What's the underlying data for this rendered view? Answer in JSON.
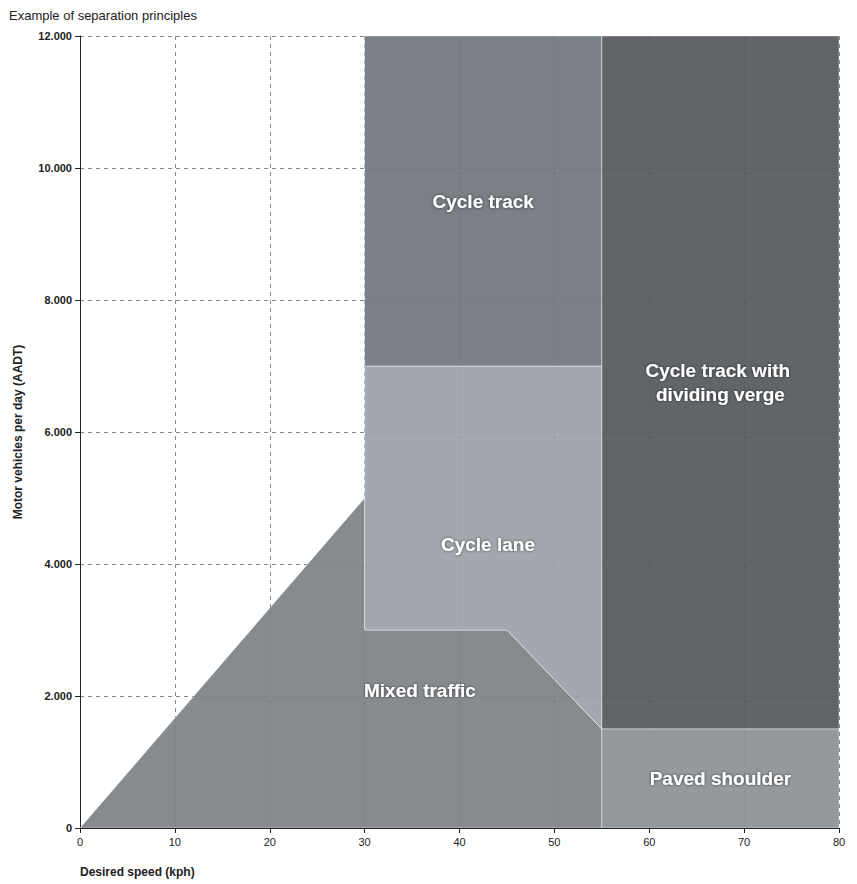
{
  "chart_data": {
    "type": "region",
    "title": "Example of separation principles",
    "x_label": "Desired speed (kph)",
    "y_label": "Motor vehicles per day (AADT)",
    "xlim": [
      0,
      80
    ],
    "xticks": [
      0,
      10,
      20,
      30,
      40,
      50,
      60,
      70,
      80
    ],
    "ylim": [
      0,
      12000
    ],
    "yticks": [
      0,
      {
        "value": 2000,
        "label": "2.000"
      },
      {
        "value": 4000,
        "label": "4.000"
      },
      {
        "value": 6000,
        "label": "6.000"
      },
      {
        "value": 8000,
        "label": "8.000"
      },
      {
        "value": 10000,
        "label": "10.000"
      },
      {
        "value": 12000,
        "label": "12.000"
      }
    ],
    "grid": true,
    "regions": [
      {
        "name": "Mixed traffic",
        "color": "#7d8187",
        "polygon": [
          [
            0,
            0
          ],
          [
            30,
            5000
          ],
          [
            30,
            3000
          ],
          [
            45,
            3000
          ],
          [
            55,
            1500
          ],
          [
            55,
            0
          ]
        ]
      },
      {
        "name": "Cycle lane",
        "color": "#9aa1a6",
        "polygon": [
          [
            30,
            3000
          ],
          [
            45,
            3000
          ],
          [
            55,
            1500
          ],
          [
            55,
            7000
          ],
          [
            30,
            7000
          ]
        ]
      },
      {
        "name": "Cycle track",
        "color": "#6f757b",
        "polygon": [
          [
            30,
            7000
          ],
          [
            55,
            7000
          ],
          [
            55,
            12000
          ],
          [
            30,
            12000
          ]
        ]
      },
      {
        "name": "Cycle track with dividing verge",
        "color": "#54585d",
        "polygon": [
          [
            55,
            1500
          ],
          [
            80,
            1500
          ],
          [
            80,
            12000
          ],
          [
            55,
            12000
          ]
        ]
      },
      {
        "name": "Paved shoulder",
        "color": "#8b9095",
        "polygon": [
          [
            55,
            0
          ],
          [
            80,
            0
          ],
          [
            80,
            1500
          ],
          [
            55,
            1500
          ]
        ]
      }
    ]
  }
}
